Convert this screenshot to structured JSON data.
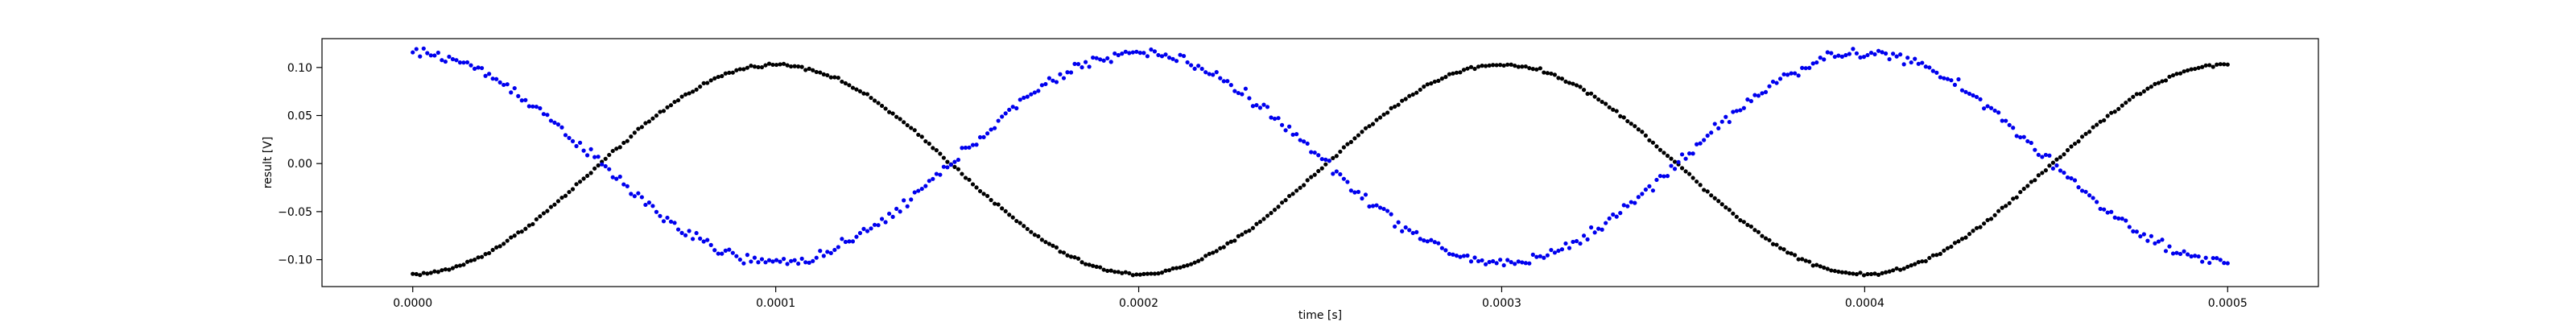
{
  "chart_data": {
    "type": "scatter",
    "title": "",
    "xlabel": "time [s]",
    "ylabel": "result [V]",
    "xlim": [
      -2.5e-05,
      0.000525
    ],
    "ylim": [
      -0.128,
      0.13
    ],
    "x_ticks": [
      0.0,
      0.0001,
      0.0002,
      0.0003,
      0.0004,
      0.0005
    ],
    "x_tick_labels": [
      "0.0000",
      "0.0001",
      "0.0002",
      "0.0003",
      "0.0004",
      "0.0005"
    ],
    "y_ticks": [
      -0.1,
      -0.05,
      0.0,
      0.05,
      0.1
    ],
    "y_tick_labels": [
      "−0.10",
      "−0.05",
      "0.00",
      "0.05",
      "0.10"
    ],
    "grid": false,
    "legend": "none",
    "series": [
      {
        "color": "#000000",
        "marker": "dot",
        "model": "offset + amplitude * sin(2*pi*frequency*x + phase)",
        "frequency": 5000,
        "amplitude": 0.109,
        "offset": -0.006,
        "phase": -1.5708,
        "x_start": 0.0,
        "x_end": 0.0005,
        "point_count": 500,
        "noise": 0.0015
      },
      {
        "color": "#0000ee",
        "marker": "dot",
        "model": "offset + amplitude * sin(2*pi*frequency*x + phase)",
        "frequency": 5000,
        "amplitude": 0.109,
        "offset": 0.006,
        "phase": 1.5708,
        "x_start": 0.0,
        "x_end": 0.0005,
        "point_count": 500,
        "noise": 0.0055
      }
    ]
  }
}
